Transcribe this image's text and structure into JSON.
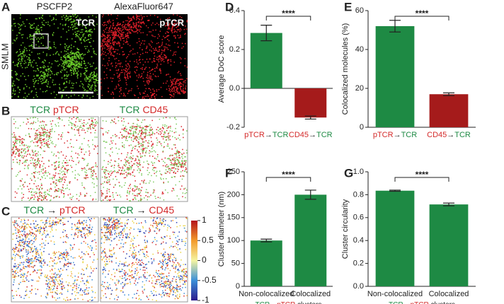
{
  "term_colors": {
    "TCR": "#1e8a44",
    "pTCR": "#d42a2a",
    "CD45": "#d42a2a"
  },
  "images": {
    "A": {
      "letter": "A",
      "col_titles": [
        "PSCFP2",
        "AlexaFluor647"
      ],
      "overlays": [
        "TCR",
        "pTCR"
      ],
      "row_label": "SMLM"
    },
    "B": {
      "letter": "B",
      "titles": [
        "TCR pTCR",
        "TCR CD45"
      ]
    },
    "C": {
      "letter": "C",
      "titles": [
        "TCR → pTCR",
        "TCR → CD45"
      ],
      "colorbar": {
        "lim": [
          -1,
          1
        ],
        "ticks": [
          1,
          0.5,
          0,
          -0.5,
          -1
        ]
      }
    }
  },
  "chart_data": [
    {
      "type": "bar",
      "letter": "D",
      "ylabel": "Average DoC score",
      "categories": [
        "pTCR→TCR",
        "CD45→TCR"
      ],
      "values": [
        0.285,
        -0.15
      ],
      "errors": [
        0.04,
        0.008
      ],
      "colors": [
        "#1e8a44",
        "#a51b1b"
      ],
      "ylim": [
        -0.2,
        0.4
      ],
      "yticks": [
        -0.2,
        {
          "value": 0,
          "label": "0.0"
        },
        0.2,
        0.4
      ],
      "significance": "****"
    },
    {
      "type": "bar",
      "letter": "E",
      "ylabel": "Colocalized molecules (%)",
      "categories": [
        "pTCR→TCR",
        "CD45→TCR"
      ],
      "values": [
        52,
        17
      ],
      "errors": [
        3,
        0.7
      ],
      "colors": [
        "#1e8a44",
        "#a51b1b"
      ],
      "ylim": [
        0,
        60
      ],
      "yticks": [
        0,
        20,
        40,
        60
      ],
      "significance": "****"
    },
    {
      "type": "bar",
      "letter": "F",
      "ylabel": "Cluster diameter (nm)",
      "xlabel": "TCR→pTCR clusters",
      "categories": [
        "Non-colocalized",
        "Colocalized"
      ],
      "values": [
        100,
        200
      ],
      "errors": [
        3,
        10
      ],
      "colors": [
        "#1e8a44",
        "#1e8a44"
      ],
      "ylim": [
        0,
        250
      ],
      "yticks": [
        0,
        50,
        100,
        150,
        200,
        250
      ],
      "significance": "****"
    },
    {
      "type": "bar",
      "letter": "G",
      "ylabel": "Cluster circularity",
      "xlabel": "TCR→pTCR clusters",
      "categories": [
        "Non-colocalized",
        "Colocalized"
      ],
      "values": [
        0.835,
        0.715
      ],
      "errors": [
        0.005,
        0.012
      ],
      "colors": [
        "#1e8a44",
        "#1e8a44"
      ],
      "ylim": [
        0,
        1
      ],
      "yticks": [
        {
          "value": 0,
          "label": "0.0"
        },
        0.2,
        0.4,
        0.6,
        0.8,
        {
          "value": 1,
          "label": "1.0"
        }
      ],
      "significance": "****"
    }
  ]
}
